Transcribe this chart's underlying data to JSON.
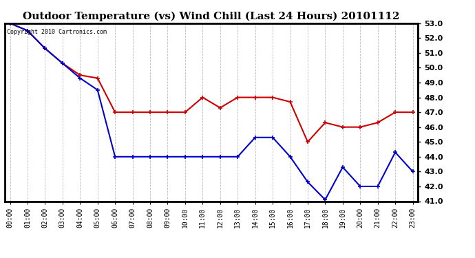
{
  "title": "Outdoor Temperature (vs) Wind Chill (Last 24 Hours) 20101112",
  "copyright_text": "Copyright 2010 Cartronics.com",
  "x_labels": [
    "00:00",
    "01:00",
    "02:00",
    "03:00",
    "04:00",
    "05:00",
    "06:00",
    "07:00",
    "08:00",
    "09:00",
    "10:00",
    "11:00",
    "12:00",
    "13:00",
    "14:00",
    "15:00",
    "16:00",
    "17:00",
    "18:00",
    "19:00",
    "20:00",
    "21:00",
    "22:00",
    "23:00"
  ],
  "ylim": [
    41.0,
    53.0
  ],
  "yticks": [
    41.0,
    42.0,
    43.0,
    44.0,
    45.0,
    46.0,
    47.0,
    48.0,
    49.0,
    50.0,
    51.0,
    52.0,
    53.0
  ],
  "temp_color": "#cc0000",
  "wind_chill_color": "#0000cc",
  "background_color": "#ffffff",
  "grid_color": "#aaaaaa",
  "title_fontsize": 11,
  "border_color": "#000000",
  "temp_data": [
    53.0,
    52.5,
    51.3,
    50.3,
    49.5,
    49.3,
    47.0,
    47.0,
    47.0,
    47.0,
    47.0,
    48.0,
    47.3,
    48.0,
    48.0,
    48.0,
    47.7,
    45.0,
    46.3,
    46.0,
    46.0,
    46.3,
    47.0,
    47.0
  ],
  "wind_chill_data": [
    53.0,
    52.5,
    51.3,
    50.3,
    49.3,
    48.5,
    44.0,
    44.0,
    44.0,
    44.0,
    44.0,
    44.0,
    44.0,
    44.0,
    45.3,
    45.3,
    44.0,
    42.3,
    41.1,
    43.3,
    42.0,
    42.0,
    44.3,
    43.0
  ]
}
